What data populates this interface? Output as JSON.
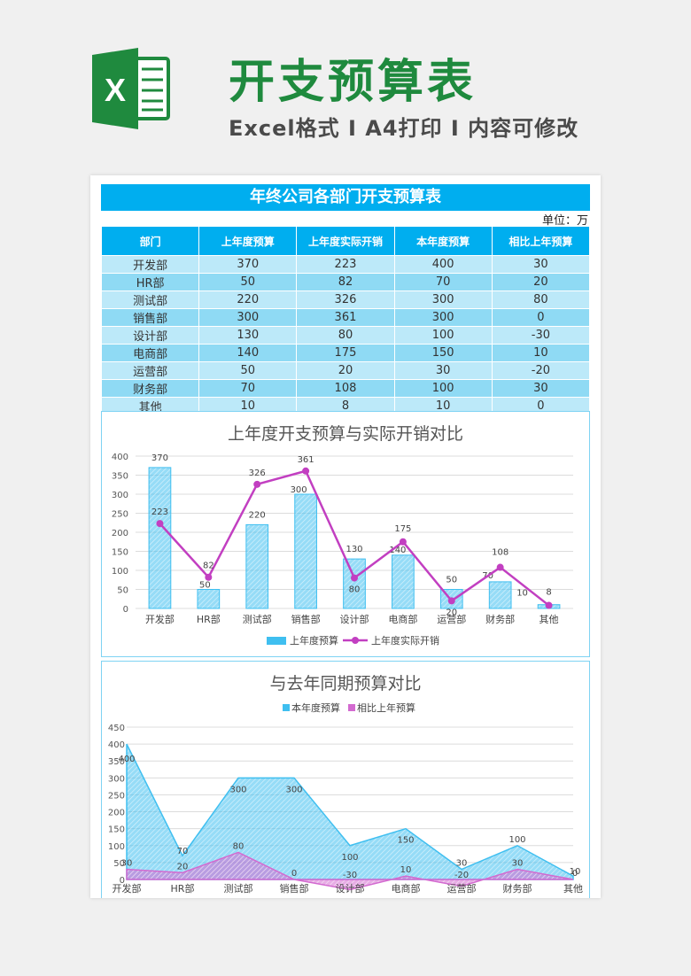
{
  "header": {
    "title": "开支预算表",
    "subtitle": "Excel格式 Ⅰ A4打印 Ⅰ 内容可修改",
    "logo_letter": "X",
    "logo_icon": "excel-logo-icon",
    "brand_color": "#1f8a3e"
  },
  "sheet": {
    "title": "年终公司各部门开支预算表",
    "unit": "单位：万",
    "columns": [
      "部门",
      "上年度预算",
      "上年度实际开销",
      "本年度预算",
      "相比上年预算"
    ],
    "rows": [
      [
        "开发部",
        "370",
        "223",
        "400",
        "30"
      ],
      [
        "HR部",
        "50",
        "82",
        "70",
        "20"
      ],
      [
        "测试部",
        "220",
        "326",
        "300",
        "80"
      ],
      [
        "销售部",
        "300",
        "361",
        "300",
        "0"
      ],
      [
        "设计部",
        "130",
        "80",
        "100",
        "-30"
      ],
      [
        "电商部",
        "140",
        "175",
        "150",
        "10"
      ],
      [
        "运营部",
        "50",
        "20",
        "30",
        "-20"
      ],
      [
        "财务部",
        "70",
        "108",
        "100",
        "30"
      ],
      [
        "其他",
        "10",
        "8",
        "10",
        "0"
      ]
    ],
    "header_color": "#00aeef"
  },
  "chart_data": [
    {
      "type": "bar",
      "title": "上年度开支预算与实际开销对比",
      "categories": [
        "开发部",
        "HR部",
        "测试部",
        "销售部",
        "设计部",
        "电商部",
        "运营部",
        "财务部",
        "其他"
      ],
      "series": [
        {
          "name": "上年度预算",
          "kind": "bar",
          "values": [
            370,
            50,
            220,
            300,
            130,
            140,
            50,
            70,
            10
          ],
          "color": "#3fbff0"
        },
        {
          "name": "上年度实际开销",
          "kind": "line",
          "values": [
            223,
            82,
            326,
            361,
            80,
            175,
            20,
            108,
            8
          ],
          "color": "#c23fc1"
        }
      ],
      "yticks": [
        0,
        50,
        100,
        150,
        200,
        250,
        300,
        350,
        400
      ],
      "ylim": [
        0,
        400
      ],
      "grid": true,
      "legend": "bottom"
    },
    {
      "type": "area",
      "title": "与去年同期预算对比",
      "categories": [
        "开发部",
        "HR部",
        "测试部",
        "销售部",
        "设计部",
        "电商部",
        "运营部",
        "财务部",
        "其他"
      ],
      "series": [
        {
          "name": "本年度预算",
          "values": [
            400,
            70,
            300,
            300,
            100,
            150,
            30,
            100,
            10
          ],
          "color": "#3fbff0"
        },
        {
          "name": "相比上年预算",
          "values": [
            30,
            20,
            80,
            0,
            -30,
            10,
            -20,
            30,
            0
          ],
          "color": "#d36ad0"
        }
      ],
      "yticks": [
        0,
        50,
        100,
        150,
        200,
        250,
        300,
        350,
        400,
        450
      ],
      "ylim": [
        0,
        450
      ],
      "grid": true,
      "legend": "top"
    }
  ]
}
